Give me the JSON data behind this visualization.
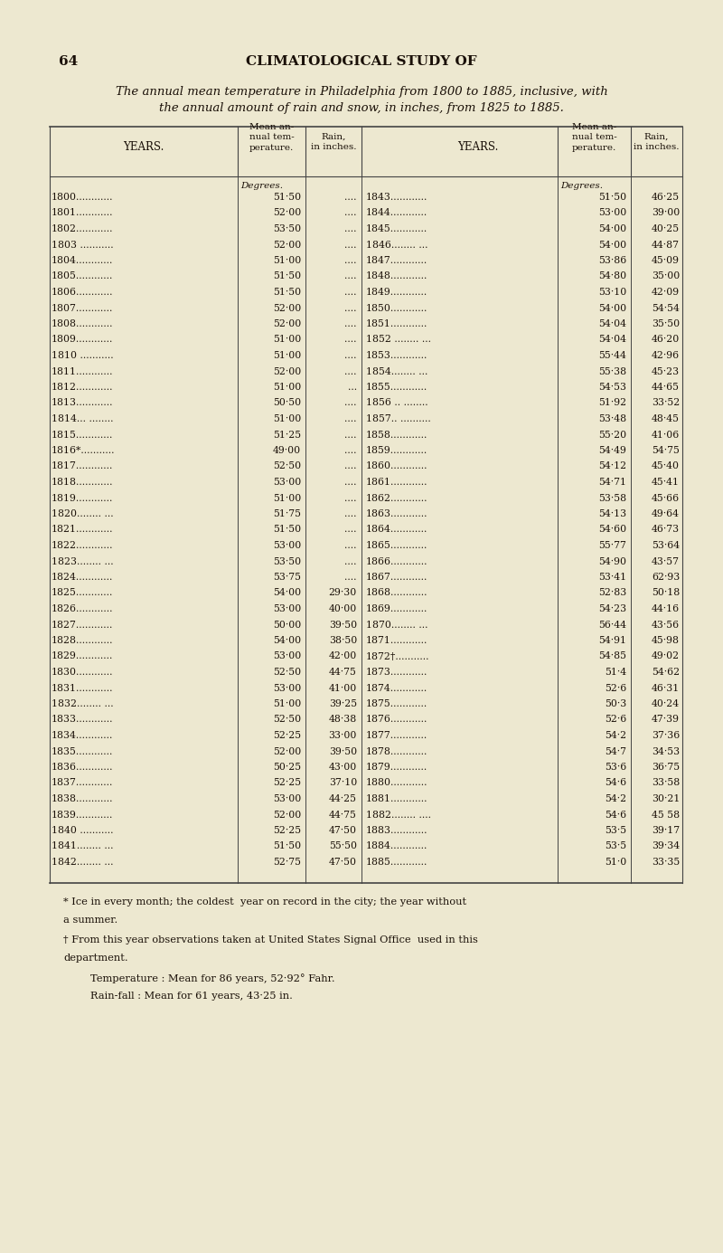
{
  "page_number": "64",
  "page_header": "CLIMATOLOGICAL STUDY OF",
  "title_line1": "The annual mean temperature in Philadelphia from 1800 to 1885, inclusive, with",
  "title_line2": "the annual amount of rain and snow, in inches, from 1825 to 1885.",
  "left_data": [
    [
      "1800............",
      "51·50",
      "...."
    ],
    [
      "1801............",
      "52·00",
      "...."
    ],
    [
      "1802............",
      "53·50",
      "...."
    ],
    [
      "1803 ...........",
      "52·00",
      "...."
    ],
    [
      "1804............",
      "51·00",
      "...."
    ],
    [
      "1805............",
      "51·50",
      "...."
    ],
    [
      "1806............",
      "51·50",
      "...."
    ],
    [
      "1807............",
      "52·00",
      "...."
    ],
    [
      "1808............",
      "52·00",
      "...."
    ],
    [
      "1809............",
      "51·00",
      "...."
    ],
    [
      "1810 ...........",
      "51·00",
      "...."
    ],
    [
      "1811............",
      "52·00",
      "...."
    ],
    [
      "1812............",
      "51·00",
      "..."
    ],
    [
      "1813............",
      "50·50",
      "...."
    ],
    [
      "1814... ........",
      "51·00",
      "...."
    ],
    [
      "1815............",
      "51·25",
      "...."
    ],
    [
      "1816*...........",
      "49·00",
      "...."
    ],
    [
      "1817............",
      "52·50",
      "...."
    ],
    [
      "1818............",
      "53·00",
      "...."
    ],
    [
      "1819............",
      "51·00",
      "...."
    ],
    [
      "1820........ ...",
      "51·75",
      "...."
    ],
    [
      "1821............",
      "51·50",
      "...."
    ],
    [
      "1822............",
      "53·00",
      "...."
    ],
    [
      "1823........ ...",
      "53·50",
      "...."
    ],
    [
      "1824............",
      "53·75",
      "...."
    ],
    [
      "1825............",
      "54·00",
      "29·30"
    ],
    [
      "1826............",
      "53·00",
      "40·00"
    ],
    [
      "1827............",
      "50·00",
      "39·50"
    ],
    [
      "1828............",
      "54·00",
      "38·50"
    ],
    [
      "1829............",
      "53·00",
      "42·00"
    ],
    [
      "1830............",
      "52·50",
      "44·75"
    ],
    [
      "1831............",
      "53·00",
      "41·00"
    ],
    [
      "1832........ ...",
      "51·00",
      "39·25"
    ],
    [
      "1833............",
      "52·50",
      "48·38"
    ],
    [
      "1834............",
      "52·25",
      "33·00"
    ],
    [
      "1835............",
      "52·00",
      "39·50"
    ],
    [
      "1836............",
      "50·25",
      "43·00"
    ],
    [
      "1837............",
      "52·25",
      "37·10"
    ],
    [
      "1838............",
      "53·00",
      "44·25"
    ],
    [
      "1839............",
      "52·00",
      "44·75"
    ],
    [
      "1840 ...........",
      "52·25",
      "47·50"
    ],
    [
      "1841........ ...",
      "51·50",
      "55·50"
    ],
    [
      "1842........ ...",
      "52·75",
      "47·50"
    ]
  ],
  "right_data": [
    [
      "1843............",
      "51·50",
      "46·25"
    ],
    [
      "1844............",
      "53·00",
      "39·00"
    ],
    [
      "1845............",
      "54·00",
      "40·25"
    ],
    [
      "1846........ ...",
      "54·00",
      "44·87"
    ],
    [
      "1847............",
      "53·86",
      "45·09"
    ],
    [
      "1848............",
      "54·80",
      "35·00"
    ],
    [
      "1849............",
      "53·10",
      "42·09"
    ],
    [
      "1850............",
      "54·00",
      "54·54"
    ],
    [
      "1851............",
      "54·04",
      "35·50"
    ],
    [
      "1852 ........ ...",
      "54·04",
      "46·20"
    ],
    [
      "1853............",
      "55·44",
      "42·96"
    ],
    [
      "1854........ ...",
      "55·38",
      "45·23"
    ],
    [
      "1855............",
      "54·53",
      "44·65"
    ],
    [
      "1856 .. ........",
      "51·92",
      "33·52"
    ],
    [
      "1857.. ..........",
      "53·48",
      "48·45"
    ],
    [
      "1858............",
      "55·20",
      "41·06"
    ],
    [
      "1859............",
      "54·49",
      "54·75"
    ],
    [
      "1860............",
      "54·12",
      "45·40"
    ],
    [
      "1861............",
      "54·71",
      "45·41"
    ],
    [
      "1862............",
      "53·58",
      "45·66"
    ],
    [
      "1863............",
      "54·13",
      "49·64"
    ],
    [
      "1864............",
      "54·60",
      "46·73"
    ],
    [
      "1865............",
      "55·77",
      "53·64"
    ],
    [
      "1866............",
      "54·90",
      "43·57"
    ],
    [
      "1867............",
      "53·41",
      "62·93"
    ],
    [
      "1868............",
      "52·83",
      "50·18"
    ],
    [
      "1869............",
      "54·23",
      "44·16"
    ],
    [
      "1870........ ...",
      "56·44",
      "43·56"
    ],
    [
      "1871............",
      "54·91",
      "45·98"
    ],
    [
      "1872†...........",
      "54·85",
      "49·02"
    ],
    [
      "1873............",
      "51·4",
      "54·62"
    ],
    [
      "1874............",
      "52·6",
      "46·31"
    ],
    [
      "1875............",
      "50·3",
      "40·24"
    ],
    [
      "1876............",
      "52·6",
      "47·39"
    ],
    [
      "1877............",
      "54·2",
      "37·36"
    ],
    [
      "1878............",
      "54·7",
      "34·53"
    ],
    [
      "1879............",
      "53·6",
      "36·75"
    ],
    [
      "1880............",
      "54·6",
      "33·58"
    ],
    [
      "1881............",
      "54·2",
      "30·21"
    ],
    [
      "1882........ ....",
      "54·6",
      "45 58"
    ],
    [
      "1883............",
      "53·5",
      "39·17"
    ],
    [
      "1884............",
      "53·5",
      "39·34"
    ],
    [
      "1885............",
      "51·0",
      "33·35"
    ]
  ],
  "footnote1": "* Ice in every month; the coldest  year on record in the city; the year without",
  "footnote2": "a summer.",
  "footnote3": "† From this year observations taken at United States Signal Office  used in this",
  "footnote4": "department.",
  "footnote5": "Temperature : Mean for 86 years, 52·92° Fahr.",
  "footnote6": "Rain-fall : Mean for 61 years, 43·25 in.",
  "bg_color": "#ede8d0",
  "text_color": "#1a1008",
  "line_color": "#444444"
}
